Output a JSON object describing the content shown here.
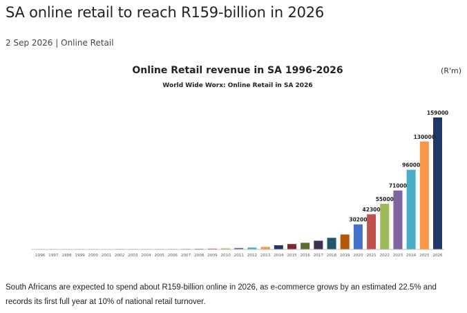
{
  "article": {
    "title": "SA online retail to reach R159-billion in 2026",
    "date": "2 Sep 2026",
    "separator": "|",
    "category": "Online Retail",
    "body": "South Africans are expected to spend about R159-billion online in 2026, as e-commerce grows by an estimated 22.5% and records its first full year at 10% of national retail turnover."
  },
  "chart_data": {
    "type": "bar",
    "title": "Online Retail revenue in SA 1996-2026",
    "subtitle": "World Wide Worx: Online Retail in SA 2026",
    "unit": "(R'm)",
    "xlabel": "",
    "ylabel": "",
    "ylim": [
      0,
      159000
    ],
    "grid": false,
    "legend": "none",
    "categories": [
      "1996",
      "1997",
      "1998",
      "1999",
      "2000",
      "2001",
      "2002",
      "2003",
      "2004",
      "2005",
      "2006",
      "2007",
      "2008",
      "2009",
      "2010",
      "2011",
      "2012",
      "2013",
      "2014",
      "2015",
      "2016",
      "2017",
      "2018",
      "2019",
      "2020",
      "2021",
      "2022",
      "2023",
      "2024",
      "2025",
      "2026"
    ],
    "values": [
      20,
      40,
      60,
      90,
      120,
      160,
      200,
      260,
      330,
      420,
      530,
      660,
      810,
      1000,
      1250,
      1800,
      2300,
      3000,
      5000,
      6500,
      8000,
      10500,
      14000,
      18000,
      30200,
      42300,
      55000,
      71000,
      96000,
      130000,
      159000
    ],
    "data_labels": [
      "",
      "",
      "",
      "",
      "",
      "",
      "",
      "",
      "",
      "",
      "",
      "",
      "",
      "",
      "",
      "",
      "",
      "",
      "",
      "",
      "",
      "",
      "",
      "",
      "30200",
      "42300",
      "55000",
      "71000",
      "96000",
      "130000",
      "159000"
    ],
    "colors": [
      "#4472c4",
      "#c0504d",
      "#9bbb59",
      "#8064a2",
      "#4bacc6",
      "#f79646",
      "#1f3864",
      "#7f2a29",
      "#586e2c",
      "#3f3151",
      "#215868",
      "#b65708",
      "#4472c4",
      "#c0504d",
      "#9bbb59",
      "#8064a2",
      "#4bacc6",
      "#f79646",
      "#1f3864",
      "#7f2a29",
      "#586e2c",
      "#3f3151",
      "#215868",
      "#b65708",
      "#4472c4",
      "#c0504d",
      "#9bbb59",
      "#8064a2",
      "#4bacc6",
      "#f79646",
      "#1f3864"
    ]
  }
}
